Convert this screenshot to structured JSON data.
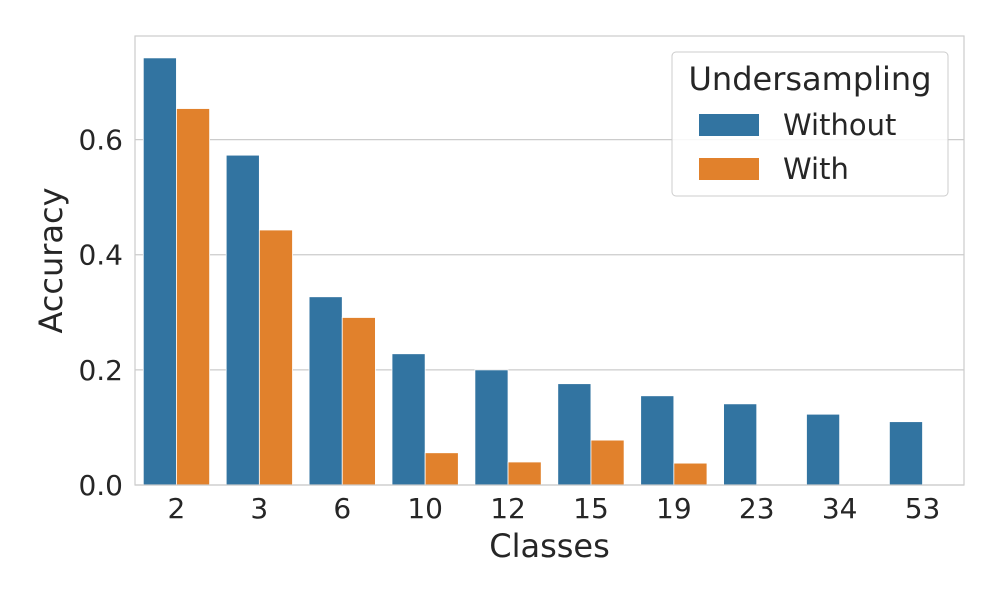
{
  "chart_data": {
    "type": "bar",
    "title": "",
    "xlabel": "Classes",
    "ylabel": "Accuracy",
    "categories": [
      "2",
      "3",
      "6",
      "10",
      "12",
      "15",
      "19",
      "23",
      "34",
      "53"
    ],
    "series": [
      {
        "name": "Without",
        "color": "#3274a1",
        "values": [
          0.742,
          0.573,
          0.327,
          0.228,
          0.2,
          0.176,
          0.155,
          0.141,
          0.123,
          0.11
        ]
      },
      {
        "name": "With",
        "color": "#e1812c",
        "values": [
          0.654,
          0.443,
          0.291,
          0.056,
          0.04,
          0.078,
          0.038,
          null,
          null,
          null
        ]
      }
    ],
    "ylim": [
      0,
      0.78
    ],
    "yticks": [
      0.0,
      0.2,
      0.4,
      0.6
    ],
    "ytick_labels": [
      "0.0",
      "0.2",
      "0.4",
      "0.6"
    ],
    "grid": "horizontal",
    "legend": {
      "title": "Undersampling",
      "placement": "top-right"
    }
  }
}
